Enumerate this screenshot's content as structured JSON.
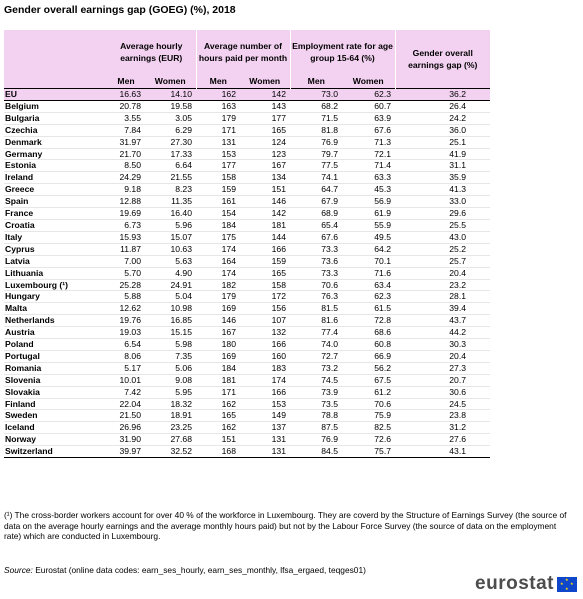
{
  "title": "Gender overall earnings gap (GOEG)  (%), 2018",
  "headers": {
    "hourly": "Average hourly earnings (EUR)",
    "hours": "Average number of hours paid per month",
    "employment": "Employment rate for age group 15-64 (%)",
    "goeg": "Gender overall earnings gap (%)",
    "men": "Men",
    "women": "Women"
  },
  "rows": [
    {
      "country": "EU",
      "hm": "16.63",
      "hw": "14.10",
      "pm": "162",
      "pw": "142",
      "em": "73.0",
      "ew": "62.3",
      "gap": "36.2"
    },
    {
      "country": "Belgium",
      "hm": "20.78",
      "hw": "19.58",
      "pm": "163",
      "pw": "143",
      "em": "68.2",
      "ew": "60.7",
      "gap": "26.4"
    },
    {
      "country": "Bulgaria",
      "hm": "3.55",
      "hw": "3.05",
      "pm": "179",
      "pw": "177",
      "em": "71.5",
      "ew": "63.9",
      "gap": "24.2"
    },
    {
      "country": "Czechia",
      "hm": "7.84",
      "hw": "6.29",
      "pm": "171",
      "pw": "165",
      "em": "81.8",
      "ew": "67.6",
      "gap": "36.0"
    },
    {
      "country": "Denmark",
      "hm": "31.97",
      "hw": "27.30",
      "pm": "131",
      "pw": "124",
      "em": "76.9",
      "ew": "71.3",
      "gap": "25.1"
    },
    {
      "country": "Germany",
      "hm": "21.70",
      "hw": "17.33",
      "pm": "153",
      "pw": "123",
      "em": "79.7",
      "ew": "72.1",
      "gap": "41.9"
    },
    {
      "country": "Estonia",
      "hm": "8.50",
      "hw": "6.64",
      "pm": "177",
      "pw": "167",
      "em": "77.5",
      "ew": "71.4",
      "gap": "31.1"
    },
    {
      "country": "Ireland",
      "hm": "24.29",
      "hw": "21.55",
      "pm": "158",
      "pw": "134",
      "em": "74.1",
      "ew": "63.3",
      "gap": "35.9"
    },
    {
      "country": "Greece",
      "hm": "9.18",
      "hw": "8.23",
      "pm": "159",
      "pw": "151",
      "em": "64.7",
      "ew": "45.3",
      "gap": "41.3"
    },
    {
      "country": "Spain",
      "hm": "12.88",
      "hw": "11.35",
      "pm": "161",
      "pw": "146",
      "em": "67.9",
      "ew": "56.9",
      "gap": "33.0"
    },
    {
      "country": "France",
      "hm": "19.69",
      "hw": "16.40",
      "pm": "154",
      "pw": "142",
      "em": "68.9",
      "ew": "61.9",
      "gap": "29.6"
    },
    {
      "country": "Croatia",
      "hm": "6.73",
      "hw": "5.96",
      "pm": "184",
      "pw": "181",
      "em": "65.4",
      "ew": "55.9",
      "gap": "25.5"
    },
    {
      "country": "Italy",
      "hm": "15.93",
      "hw": "15.07",
      "pm": "175",
      "pw": "144",
      "em": "67.6",
      "ew": "49.5",
      "gap": "43.0"
    },
    {
      "country": "Cyprus",
      "hm": "11.87",
      "hw": "10.63",
      "pm": "174",
      "pw": "166",
      "em": "73.3",
      "ew": "64.2",
      "gap": "25.2"
    },
    {
      "country": "Latvia",
      "hm": "7.00",
      "hw": "5.63",
      "pm": "164",
      "pw": "159",
      "em": "73.6",
      "ew": "70.1",
      "gap": "25.7"
    },
    {
      "country": "Lithuania",
      "hm": "5.70",
      "hw": "4.90",
      "pm": "174",
      "pw": "165",
      "em": "73.3",
      "ew": "71.6",
      "gap": "20.4"
    },
    {
      "country": "Luxembourg (¹)",
      "hm": "25.28",
      "hw": "24.91",
      "pm": "182",
      "pw": "158",
      "em": "70.6",
      "ew": "63.4",
      "gap": "23.2"
    },
    {
      "country": "Hungary",
      "hm": "5.88",
      "hw": "5.04",
      "pm": "179",
      "pw": "172",
      "em": "76.3",
      "ew": "62.3",
      "gap": "28.1"
    },
    {
      "country": "Malta",
      "hm": "12.62",
      "hw": "10.98",
      "pm": "169",
      "pw": "156",
      "em": "81.5",
      "ew": "61.5",
      "gap": "39.4"
    },
    {
      "country": "Netherlands",
      "hm": "19.76",
      "hw": "16.85",
      "pm": "146",
      "pw": "107",
      "em": "81.6",
      "ew": "72.8",
      "gap": "43.7"
    },
    {
      "country": "Austria",
      "hm": "19.03",
      "hw": "15.15",
      "pm": "167",
      "pw": "132",
      "em": "77.4",
      "ew": "68.6",
      "gap": "44.2"
    },
    {
      "country": "Poland",
      "hm": "6.54",
      "hw": "5.98",
      "pm": "180",
      "pw": "166",
      "em": "74.0",
      "ew": "60.8",
      "gap": "30.3"
    },
    {
      "country": "Portugal",
      "hm": "8.06",
      "hw": "7.35",
      "pm": "169",
      "pw": "160",
      "em": "72.7",
      "ew": "66.9",
      "gap": "20.4"
    },
    {
      "country": "Romania",
      "hm": "5.17",
      "hw": "5.06",
      "pm": "184",
      "pw": "183",
      "em": "73.2",
      "ew": "56.2",
      "gap": "27.3"
    },
    {
      "country": "Slovenia",
      "hm": "10.01",
      "hw": "9.08",
      "pm": "181",
      "pw": "174",
      "em": "74.5",
      "ew": "67.5",
      "gap": "20.7"
    },
    {
      "country": "Slovakia",
      "hm": "7.42",
      "hw": "5.95",
      "pm": "171",
      "pw": "166",
      "em": "73.9",
      "ew": "61.2",
      "gap": "30.6"
    },
    {
      "country": "Finland",
      "hm": "22.04",
      "hw": "18.32",
      "pm": "162",
      "pw": "153",
      "em": "73.5",
      "ew": "70.6",
      "gap": "24.5"
    },
    {
      "country": "Sweden",
      "hm": "21.50",
      "hw": "18.91",
      "pm": "165",
      "pw": "149",
      "em": "78.8",
      "ew": "75.9",
      "gap": "23.8"
    },
    {
      "country": "Iceland",
      "hm": "26.96",
      "hw": "23.25",
      "pm": "162",
      "pw": "137",
      "em": "87.5",
      "ew": "82.5",
      "gap": "31.2"
    },
    {
      "country": "Norway",
      "hm": "31.90",
      "hw": "27.68",
      "pm": "151",
      "pw": "131",
      "em": "76.9",
      "ew": "72.6",
      "gap": "27.6"
    },
    {
      "country": "Switzerland",
      "hm": "39.97",
      "hw": "32.52",
      "pm": "168",
      "pw": "131",
      "em": "84.5",
      "ew": "75.7",
      "gap": "43.1"
    }
  ],
  "footnote": "(¹) The cross-border workers account for over 40 % of the workforce in Luxembourg. They are coverd by the Structure of Earnings Survey (the source of data on the average hourly earnings and the average monthly hours paid) but not by the Labour Force Survey (the source of data on the employment rate) which are conducted in Luxembourg.",
  "source_label": "Source:",
  "source_text": " Eurostat (online data codes: earn_ses_hourly, earn_ses_monthly, lfsa_ergaed, teqges01)",
  "logo_text": "eurostat",
  "colors": {
    "header_bg": "#f3d2f1",
    "logo_blue": "#0e47cb",
    "logo_yellow": "#ffdd00"
  }
}
